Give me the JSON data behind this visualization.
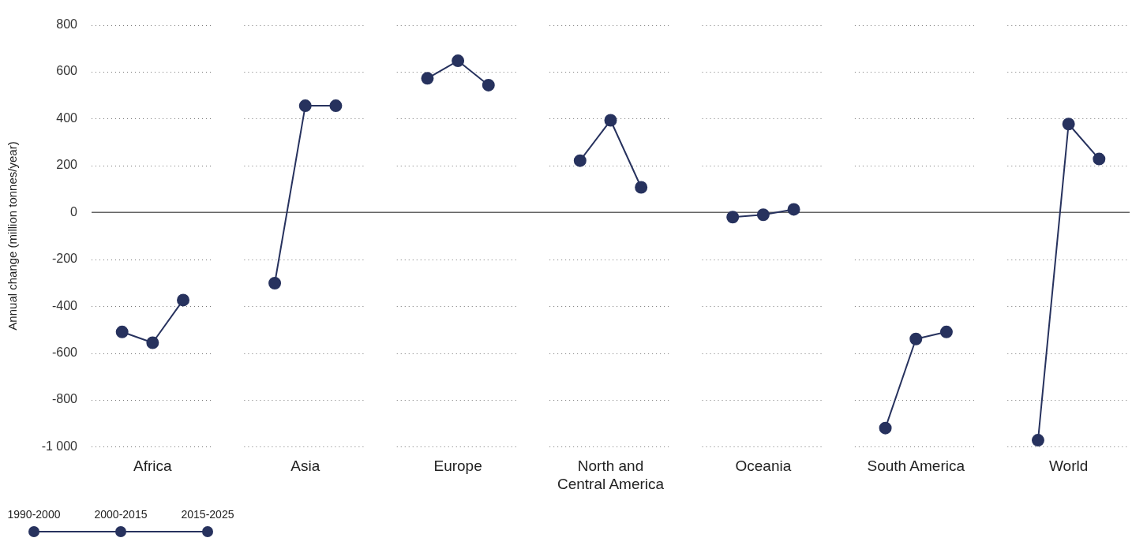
{
  "chart_data": {
    "type": "line",
    "ylabel": "Annual change (million tonnes/year)",
    "categories": [
      null,
      null,
      "Africa",
      null,
      null,
      null,
      null,
      "Asia",
      null,
      null,
      null,
      null,
      "Europe",
      null,
      null,
      null,
      null,
      "North and Central America",
      null,
      null,
      null,
      null,
      "Oceania",
      null,
      null,
      null,
      null,
      "South America",
      null,
      null,
      null,
      null,
      "World",
      null,
      null
    ],
    "series": [
      {
        "color": "#27325e",
        "values": [
          null,
          -510,
          -556,
          -374,
          null,
          null,
          null,
          null,
          null,
          null,
          null,
          null,
          null,
          null,
          null,
          null,
          null,
          null,
          null,
          null,
          null,
          null,
          null,
          null,
          null,
          null,
          null,
          null,
          null,
          null,
          null,
          null,
          null,
          null,
          null
        ]
      },
      {
        "color": "#27325e",
        "values": [
          null,
          null,
          null,
          null,
          null,
          null,
          -302,
          455,
          455,
          null,
          null,
          null,
          null,
          null,
          null,
          null,
          null,
          null,
          null,
          null,
          null,
          null,
          null,
          null,
          null,
          null,
          null,
          null,
          null,
          null,
          null,
          null,
          null,
          null,
          null
        ]
      },
      {
        "color": "#27325e",
        "values": [
          null,
          null,
          null,
          null,
          null,
          null,
          null,
          null,
          null,
          null,
          null,
          572,
          647,
          543,
          null,
          null,
          null,
          null,
          null,
          null,
          null,
          null,
          null,
          null,
          null,
          null,
          null,
          null,
          null,
          null,
          null,
          null,
          null,
          null,
          null
        ]
      },
      {
        "color": "#27325e",
        "values": [
          null,
          null,
          null,
          null,
          null,
          null,
          null,
          null,
          null,
          null,
          null,
          null,
          null,
          null,
          null,
          null,
          221,
          393,
          107,
          null,
          null,
          null,
          null,
          null,
          null,
          null,
          null,
          null,
          null,
          null,
          null,
          null,
          null,
          null,
          null
        ]
      },
      {
        "color": "#27325e",
        "values": [
          null,
          null,
          null,
          null,
          null,
          null,
          null,
          null,
          null,
          null,
          null,
          null,
          null,
          null,
          null,
          null,
          null,
          null,
          null,
          null,
          null,
          -20,
          -10,
          13,
          null,
          null,
          null,
          null,
          null,
          null,
          null,
          null,
          null,
          null,
          null
        ]
      },
      {
        "color": "#27325e",
        "values": [
          null,
          null,
          null,
          null,
          null,
          null,
          null,
          null,
          null,
          null,
          null,
          null,
          null,
          null,
          null,
          null,
          null,
          null,
          null,
          null,
          null,
          null,
          null,
          null,
          null,
          null,
          -920,
          -540,
          -510,
          null,
          null,
          null,
          null,
          null,
          null
        ]
      },
      {
        "color": "#27325e",
        "values": [
          null,
          null,
          null,
          null,
          null,
          null,
          null,
          null,
          null,
          null,
          null,
          null,
          null,
          null,
          null,
          null,
          null,
          null,
          null,
          null,
          null,
          null,
          null,
          null,
          null,
          null,
          null,
          null,
          null,
          null,
          null,
          -972,
          377,
          228,
          null
        ]
      }
    ],
    "ylim": [
      -1000,
      800
    ],
    "yticks": [
      {
        "value": -1000,
        "label": "-1 000"
      },
      -800,
      -600,
      -400,
      -200,
      0,
      200,
      400,
      600,
      800
    ],
    "grid": "y",
    "marker": "circle",
    "ref_lines": [
      {
        "axis": "y",
        "value": 0,
        "color": "#666666"
      }
    ],
    "annotations": [
      "1990-2000",
      "2000-2015",
      "2015-2025"
    ]
  }
}
